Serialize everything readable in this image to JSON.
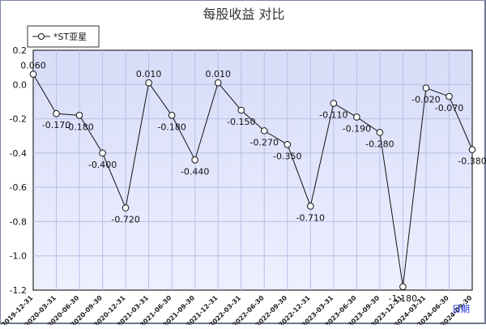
{
  "chart_data": {
    "type": "line",
    "title": "每股收益  对比",
    "xlabel": "日期",
    "ylabel": "",
    "ylim": [
      -1.2,
      0.2
    ],
    "y_ticks": [
      "0.2",
      "0.0",
      "-0.2",
      "-0.4",
      "-0.6",
      "-0.8",
      "-1.0",
      "-1.2"
    ],
    "grid": true,
    "legend_position": "top-left",
    "x": [
      "2019-12-31",
      "2020-03-31",
      "2020-06-30",
      "2020-09-30",
      "2020-12-31",
      "2021-03-31",
      "2021-06-30",
      "2021-09-30",
      "2021-12-31",
      "2022-03-31",
      "2022-06-30",
      "2022-09-30",
      "2022-12-31",
      "2023-03-31",
      "2023-06-30",
      "2023-09-30",
      "2023-12-31",
      "2024-03-31",
      "2024-06-30",
      "2024-09-30"
    ],
    "series": [
      {
        "name": "*ST亚星",
        "values": [
          0.06,
          -0.17,
          -0.18,
          -0.4,
          -0.72,
          0.01,
          -0.18,
          -0.44,
          0.01,
          -0.15,
          -0.27,
          -0.35,
          -0.71,
          -0.11,
          -0.19,
          -0.28,
          -1.18,
          -0.02,
          -0.07,
          -0.38
        ],
        "labels": [
          "0.060",
          "-0.170",
          "-0.180",
          "-0.400",
          "-0.720",
          "0.010",
          "-0.180",
          "-0.440",
          "0.010",
          "-0.150",
          "-0.270",
          "-0.350",
          "-0.710",
          "-0.110",
          "-0.190",
          "-0.280",
          "-1.180",
          "-0.020",
          "-0.070",
          "-0.380"
        ]
      }
    ]
  }
}
